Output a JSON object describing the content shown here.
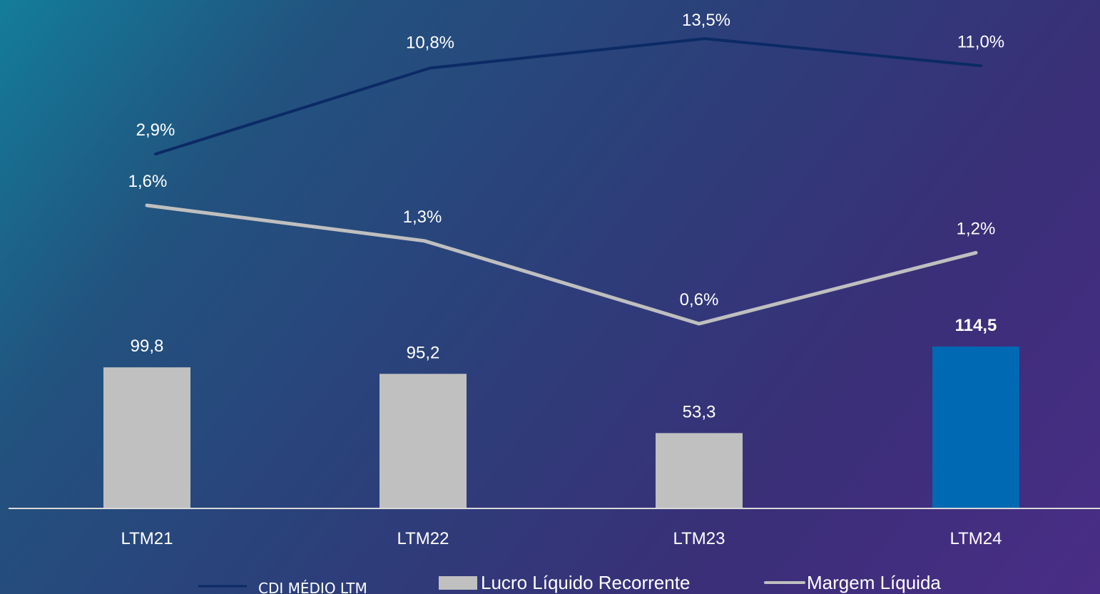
{
  "chart_data": {
    "type": "bar",
    "categories": [
      "LTM21",
      "LTM22",
      "LTM23",
      "LTM24"
    ],
    "series": [
      {
        "name": "Lucro Líquido Recorrente",
        "kind": "bar",
        "values": [
          99.8,
          95.2,
          53.3,
          114.5
        ],
        "labels": [
          "99,8",
          "95,2",
          "53,3",
          "114,5"
        ],
        "highlight_index": 3,
        "color": "#c0c0c0",
        "highlight_color": "#0069b4"
      },
      {
        "name": "Margem Líquida",
        "kind": "line",
        "values": [
          1.6,
          1.3,
          0.6,
          1.2
        ],
        "labels": [
          "1,6%",
          "1,3%",
          "0,6%",
          "1,2%"
        ],
        "color": "#bfbfbf"
      },
      {
        "name": "CDI MÉDIO LTM",
        "kind": "line",
        "values": [
          2.9,
          10.8,
          13.5,
          11.0
        ],
        "labels": [
          "2,9%",
          "10,8%",
          "13,5%",
          "11,0%"
        ],
        "color": "#0b2a66"
      }
    ],
    "legend": {
      "position": "bottom",
      "items": [
        "CDI MÉDIO LTM",
        "Lucro Líquido Recorrente",
        "Margem Líquida"
      ]
    },
    "title": "",
    "xlabel": "",
    "ylabel": ""
  }
}
